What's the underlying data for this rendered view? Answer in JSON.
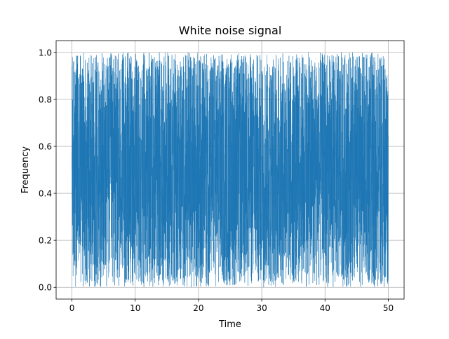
{
  "chart_data": {
    "type": "line",
    "title": "White noise signal",
    "xlabel": "Time",
    "ylabel": "Frequency",
    "xlim": [
      -2.5,
      52.5
    ],
    "ylim": [
      -0.05,
      1.05
    ],
    "xticks": [
      0,
      10,
      20,
      30,
      40,
      50
    ],
    "xtick_labels": [
      "0",
      "10",
      "20",
      "30",
      "40",
      "50"
    ],
    "yticks": [
      0.0,
      0.2,
      0.4,
      0.6,
      0.8,
      1.0
    ],
    "ytick_labels": [
      "0.0",
      "0.2",
      "0.4",
      "0.6",
      "0.8",
      "1.0"
    ],
    "grid": true,
    "series": [
      {
        "color": "#1f77b4",
        "x_start": 0,
        "x_end": 50,
        "n_points": 5000,
        "value_range": [
          0.0,
          1.0
        ],
        "distribution": "uniform random"
      }
    ]
  }
}
